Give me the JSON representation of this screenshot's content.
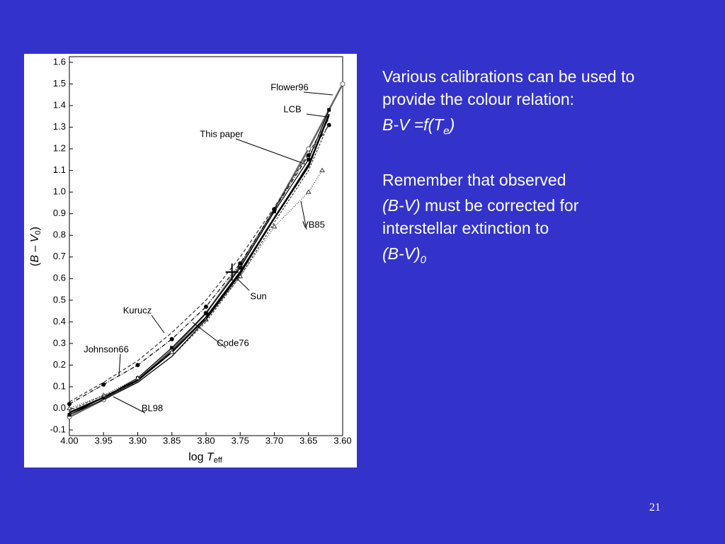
{
  "slide": {
    "paragraphs": [
      {
        "parts": [
          "Various calibrations can be used to provide the colour relation:"
        ]
      },
      {
        "parts": [
          "B-V =f(T",
          "e",
          ")"
        ]
      },
      {
        "parts": [
          "Remember that observed"
        ]
      },
      {
        "parts": [
          "(B-V)",
          " must be corrected for interstellar extinction to"
        ]
      },
      {
        "parts": [
          "(B-V)",
          "0"
        ]
      }
    ],
    "page_number": "21"
  },
  "chart_data": {
    "type": "line",
    "x_label": [
      "log ",
      "T",
      "eff"
    ],
    "y_label": [
      "(",
      "B",
      " – ",
      "V",
      "0",
      ")"
    ],
    "xlim": [
      4.0,
      3.6
    ],
    "xticks": [
      {
        "value": 4.0,
        "label": "4.00"
      },
      3.95,
      {
        "value": 3.9,
        "label": "3.90"
      },
      3.85,
      {
        "value": 3.8,
        "label": "3.80"
      },
      3.75,
      {
        "value": 3.7,
        "label": "3.70"
      },
      3.65,
      {
        "value": 3.6,
        "label": "3.60"
      }
    ],
    "ylim": [
      -0.1,
      1.6
    ],
    "yticks": [
      -0.1,
      {
        "value": 0,
        "label": "0.0"
      },
      0.1,
      0.2,
      0.3,
      0.4,
      0.5,
      0.6,
      0.7,
      0.8,
      0.9,
      {
        "value": 1,
        "label": "1.0"
      },
      1.1,
      1.2,
      1.3,
      1.4,
      1.5,
      1.6
    ],
    "series": [
      {
        "name": "Flower96",
        "color": "#666666",
        "style": "thick",
        "marker": "circle",
        "x": [
          4.0,
          3.95,
          3.9,
          3.85,
          3.8,
          3.75,
          3.7,
          3.65,
          3.6
        ],
        "values": [
          -0.04,
          0.04,
          0.13,
          0.27,
          0.44,
          0.66,
          0.92,
          1.2,
          1.5
        ]
      },
      {
        "name": "LCB",
        "color": "#000000",
        "style": "solid",
        "marker": "square",
        "x": [
          4.0,
          3.95,
          3.9,
          3.85,
          3.8,
          3.75,
          3.7,
          3.65,
          3.62
        ],
        "values": [
          -0.03,
          0.05,
          0.14,
          0.28,
          0.44,
          0.65,
          0.91,
          1.15,
          1.38
        ]
      },
      {
        "name": "This paper",
        "color": "#000000",
        "style": "thick",
        "marker": "none",
        "x": [
          4.0,
          3.95,
          3.9,
          3.85,
          3.8,
          3.75,
          3.7,
          3.65,
          3.62
        ],
        "values": [
          -0.02,
          0.05,
          0.13,
          0.26,
          0.42,
          0.63,
          0.88,
          1.12,
          1.36
        ]
      },
      {
        "name": "VB85",
        "color": "#333333",
        "style": "dotted",
        "marker": "triangle",
        "x": [
          4.0,
          3.95,
          3.9,
          3.85,
          3.8,
          3.75,
          3.7,
          3.65,
          3.63
        ],
        "values": [
          0.0,
          0.06,
          0.14,
          0.26,
          0.41,
          0.61,
          0.84,
          1.0,
          1.1
        ]
      },
      {
        "name": "Kurucz",
        "color": "#333333",
        "style": "dashed",
        "marker": "none",
        "x": [
          4.0,
          3.95,
          3.9,
          3.85,
          3.8,
          3.75,
          3.7,
          3.65,
          3.62
        ],
        "values": [
          0.03,
          0.12,
          0.22,
          0.35,
          0.5,
          0.7,
          0.93,
          1.18,
          1.34
        ]
      },
      {
        "name": "Code76",
        "color": "#000000",
        "style": "dashdot",
        "marker": "dot",
        "x": [
          4.0,
          3.95,
          3.9,
          3.85,
          3.8,
          3.75,
          3.7,
          3.65,
          3.62
        ],
        "values": [
          0.02,
          0.11,
          0.2,
          0.32,
          0.47,
          0.67,
          0.92,
          1.17,
          1.31
        ]
      },
      {
        "name": "Johnson66",
        "color": "#333333",
        "style": "shortdash",
        "marker": "none",
        "x": [
          4.0,
          3.95,
          3.9,
          3.85,
          3.8,
          3.75,
          3.7,
          3.65,
          3.62
        ],
        "values": [
          -0.01,
          0.06,
          0.12,
          0.24,
          0.4,
          0.61,
          0.86,
          1.1,
          1.32
        ]
      },
      {
        "name": "BL98",
        "color": "#000000",
        "style": "solid",
        "marker": "none",
        "x": [
          4.0,
          3.95,
          3.9,
          3.85,
          3.8,
          3.75,
          3.7,
          3.65,
          3.62
        ],
        "values": [
          -0.03,
          0.04,
          0.12,
          0.24,
          0.41,
          0.62,
          0.88,
          1.13,
          1.35
        ]
      }
    ],
    "sun": {
      "label": "Sun",
      "x": 3.762,
      "y": 0.63
    }
  }
}
